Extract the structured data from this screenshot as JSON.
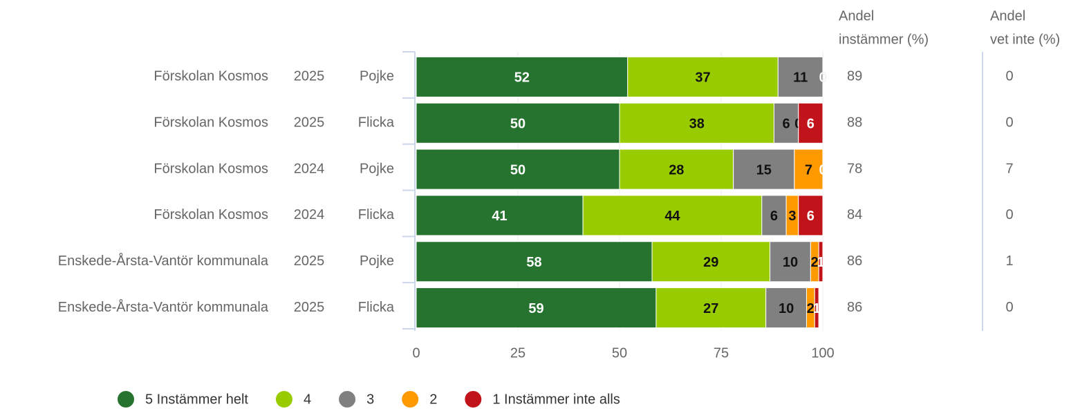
{
  "chart_data": {
    "type": "stacked-bar-horizontal",
    "categories": [
      [
        "Förskolan Kosmos",
        "2025",
        "Pojke"
      ],
      [
        "Förskolan Kosmos",
        "2025",
        "Flicka"
      ],
      [
        "Förskolan Kosmos",
        "2024",
        "Pojke"
      ],
      [
        "Förskolan Kosmos",
        "2024",
        "Flicka"
      ],
      [
        "Enskede-Årsta-Vantör kommunala",
        "2025",
        "Pojke"
      ],
      [
        "Enskede-Årsta-Vantör kommunala",
        "2025",
        "Flicka"
      ]
    ],
    "series": [
      {
        "name": "5 Instämmer helt",
        "color": "#267330",
        "label_color": "#ffffff",
        "values": [
          52,
          50,
          50,
          41,
          58,
          59
        ]
      },
      {
        "name": "4",
        "color": "#99cc00",
        "label_color": "#111111",
        "values": [
          37,
          38,
          28,
          44,
          29,
          27
        ]
      },
      {
        "name": "3",
        "color": "#808080",
        "label_color": "#111111",
        "values": [
          11,
          6,
          15,
          6,
          10,
          10
        ]
      },
      {
        "name": "2",
        "color": "#ff9900",
        "label_color": "#111111",
        "values": [
          0,
          0,
          7,
          3,
          2,
          2
        ]
      },
      {
        "name": "1 Instämmer inte alls",
        "color": "#c0141a",
        "label_color": "#ffffff",
        "values": [
          0,
          6,
          0,
          6,
          1,
          1
        ]
      }
    ],
    "xlim": [
      0,
      100
    ],
    "xticks": [
      0,
      25,
      50,
      75,
      100
    ],
    "grid": true,
    "columns": [
      {
        "header": [
          "Andel",
          "instämmer (%)"
        ],
        "values": [
          89,
          88,
          78,
          84,
          86,
          86
        ]
      },
      {
        "header": [
          "Andel",
          "vet inte (%)"
        ],
        "values": [
          0,
          0,
          7,
          0,
          1,
          0
        ]
      }
    ],
    "legend": "bottom"
  }
}
